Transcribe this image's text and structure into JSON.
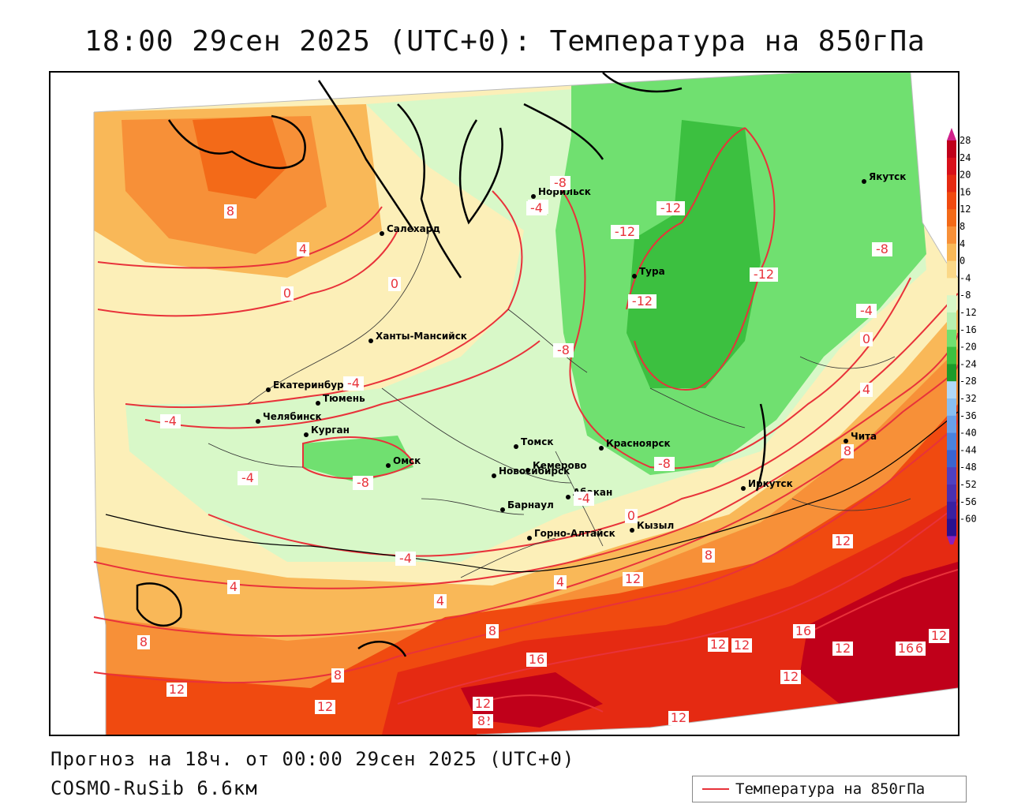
{
  "title": "18:00 29сен 2025 (UTC+0): Температура на 850гПа",
  "forecast_line": "Прогноз на 18ч. от 00:00 29сен 2025 (UTC+0)",
  "model_line": "COSMO-RuSib 6.6км",
  "legend_label": "Температура на 850гПа",
  "contour_color": "#e8323a",
  "colorbar": {
    "levels": [
      "28",
      "24",
      "20",
      "16",
      "12",
      "8",
      "4",
      "0",
      "-4",
      "-8",
      "-12",
      "-16",
      "-20",
      "-24",
      "-28",
      "-32",
      "-36",
      "-40",
      "-44",
      "-48",
      "-52",
      "-56",
      "-60"
    ],
    "colors": [
      "#c0001a",
      "#d8101a",
      "#e52a12",
      "#f04a10",
      "#f36a18",
      "#f79038",
      "#f9b858",
      "#fbd888",
      "#fcefb8",
      "#d8f8c8",
      "#b8f0b0",
      "#70e070",
      "#3cc040",
      "#1c9a2a",
      "#b0d8f8",
      "#88bef0",
      "#6aa0e8",
      "#4a82dc",
      "#3a64d0",
      "#5040c0",
      "#4a30b0",
      "#3a20a0",
      "#2a1090"
    ],
    "top_arrow_color": "#d0208a",
    "bottom_arrow_color": "#8a20c0"
  },
  "cities": [
    {
      "name": "Якутск"
    },
    {
      "name": "Норильск"
    },
    {
      "name": "Салехард"
    },
    {
      "name": "Тура"
    },
    {
      "name": "Ханты-Мансийск"
    },
    {
      "name": "Екатеринбург"
    },
    {
      "name": "Тюмень"
    },
    {
      "name": "Челябинск"
    },
    {
      "name": "Курган"
    },
    {
      "name": "Омск"
    },
    {
      "name": "Новосибирск"
    },
    {
      "name": "Томск"
    },
    {
      "name": "Кемерово"
    },
    {
      "name": "Красноярск"
    },
    {
      "name": "Абакан"
    },
    {
      "name": "Барнаул"
    },
    {
      "name": "Горно-Алтайск"
    },
    {
      "name": "Кызыл"
    },
    {
      "name": "Иркутск"
    },
    {
      "name": "Чита"
    }
  ],
  "isotherm_labels": [
    "8",
    "4",
    "0",
    "0",
    "-4",
    "-4",
    "-8",
    "-4",
    "-12",
    "-12",
    "-12",
    "-12",
    "-8",
    "-8",
    "-8",
    "-4",
    "0",
    "4",
    "8",
    "8",
    "-4",
    "-4",
    "-8",
    "-4",
    "-4",
    "0",
    "4",
    "4",
    "8",
    "12",
    "12",
    "12",
    "8",
    "8",
    "12",
    "16",
    "16",
    "12",
    "12",
    "16",
    "12",
    "8",
    "4",
    "8",
    "12",
    "16",
    "12",
    "12",
    "16",
    "12",
    "12",
    "0"
  ]
}
